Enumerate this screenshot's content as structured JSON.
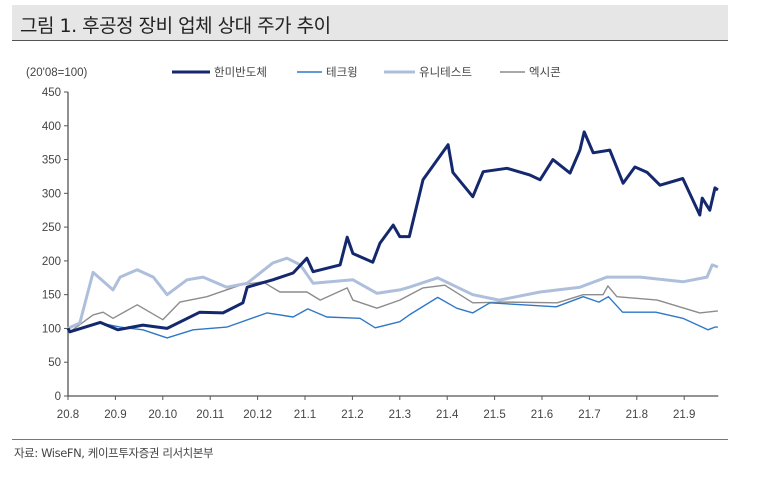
{
  "header": {
    "title": "그림 1. 후공정 장비 업체 상대 주가 추이"
  },
  "footer": {
    "source": "자료: WiseFN, 케이프투자증권 리서치본부"
  },
  "chart_data": {
    "type": "line",
    "title": "그림 1. 후공정 장비 업체 상대 주가 추이",
    "unit_label": "(20'08=100)",
    "ylim": [
      0,
      450
    ],
    "yticks": [
      "0",
      "50",
      "100",
      "150",
      "200",
      "250",
      "300",
      "350",
      "400",
      "450"
    ],
    "xticks": [
      "20.8",
      "20.9",
      "20.10",
      "20.11",
      "20.12",
      "21.1",
      "21.2",
      "21.3",
      "21.4",
      "21.5",
      "21.6",
      "21.7",
      "21.8",
      "21.9"
    ],
    "x_unit": "months since 20.8",
    "xlim": [
      0,
      13.72
    ],
    "legend_position": "top",
    "series": [
      {
        "name": "한미반도체",
        "color": "#14286e",
        "width": 3,
        "x": [
          0,
          0.04,
          0.68,
          1.05,
          1.58,
          2.09,
          2.78,
          3.27,
          3.69,
          3.78,
          4.32,
          4.75,
          5.04,
          5.17,
          5.74,
          5.89,
          6.01,
          6.43,
          6.58,
          6.86,
          7.0,
          7.2,
          7.49,
          8.02,
          8.12,
          8.54,
          8.76,
          9.26,
          9.75,
          9.96,
          10.23,
          10.59,
          10.8,
          10.89,
          11.08,
          11.43,
          11.71,
          11.96,
          12.22,
          12.49,
          12.97,
          13.33,
          13.38,
          13.54,
          13.65,
          13.71
        ],
        "values": [
          100,
          95,
          109,
          98,
          105,
          100,
          124,
          123,
          138,
          161,
          172,
          182,
          204,
          184,
          194,
          235,
          211,
          198,
          226,
          253,
          236,
          236,
          320,
          372,
          331,
          295,
          332,
          337,
          327,
          320,
          350,
          330,
          364,
          391,
          360,
          364,
          315,
          339,
          331,
          312,
          322,
          268,
          293,
          275,
          308,
          305
        ]
      },
      {
        "name": "테크윙",
        "color": "#2f78c8",
        "width": 1.4,
        "x": [
          0,
          0.04,
          0.68,
          1.1,
          1.58,
          2.09,
          2.64,
          3.35,
          4.2,
          4.75,
          5.06,
          5.46,
          6.16,
          6.48,
          7.0,
          7.2,
          7.8,
          8.2,
          8.54,
          8.9,
          9.6,
          10.3,
          10.87,
          11.2,
          11.4,
          11.7,
          12.4,
          12.97,
          13.38,
          13.5,
          13.65,
          13.71
        ],
        "values": [
          100,
          95,
          108,
          102,
          98,
          86,
          98,
          102,
          123,
          117,
          129,
          117,
          115,
          101,
          110,
          120,
          146,
          130,
          123,
          138,
          135,
          132,
          147,
          139,
          147,
          124,
          124,
          115,
          102,
          98,
          102,
          102
        ]
      },
      {
        "name": "유니테스트",
        "color": "#aebfdc",
        "width": 3,
        "x": [
          0,
          0.25,
          0.53,
          0.95,
          1.1,
          1.46,
          1.8,
          2.09,
          2.51,
          2.85,
          3.35,
          3.78,
          4.32,
          4.62,
          4.9,
          5.17,
          6.01,
          6.52,
          7.0,
          7.2,
          7.8,
          8.54,
          9.1,
          9.96,
          10.8,
          11.37,
          12.07,
          12.97,
          13.48,
          13.59,
          13.71
        ],
        "values": [
          100,
          108,
          183,
          157,
          176,
          187,
          176,
          150,
          172,
          176,
          161,
          167,
          197,
          204,
          194,
          167,
          172,
          152,
          157,
          161,
          175,
          150,
          142,
          154,
          161,
          176,
          176,
          169,
          176,
          194,
          191
        ]
      },
      {
        "name": "엑시콘",
        "color": "#8c8c8c",
        "width": 1.4,
        "x": [
          0,
          0.04,
          0.53,
          0.74,
          0.95,
          1.46,
          2.0,
          2.36,
          2.93,
          3.63,
          4.11,
          4.47,
          5.04,
          5.32,
          5.89,
          6.01,
          6.52,
          7.0,
          7.49,
          7.95,
          8.54,
          9.26,
          10.32,
          10.87,
          11.29,
          11.39,
          11.58,
          12.43,
          13.33,
          13.71
        ],
        "values": [
          100,
          95,
          120,
          124,
          115,
          135,
          113,
          139,
          147,
          164,
          169,
          154,
          154,
          142,
          160,
          142,
          130,
          142,
          160,
          164,
          138,
          139,
          138,
          150,
          150,
          163,
          147,
          142,
          123,
          126
        ]
      }
    ]
  }
}
